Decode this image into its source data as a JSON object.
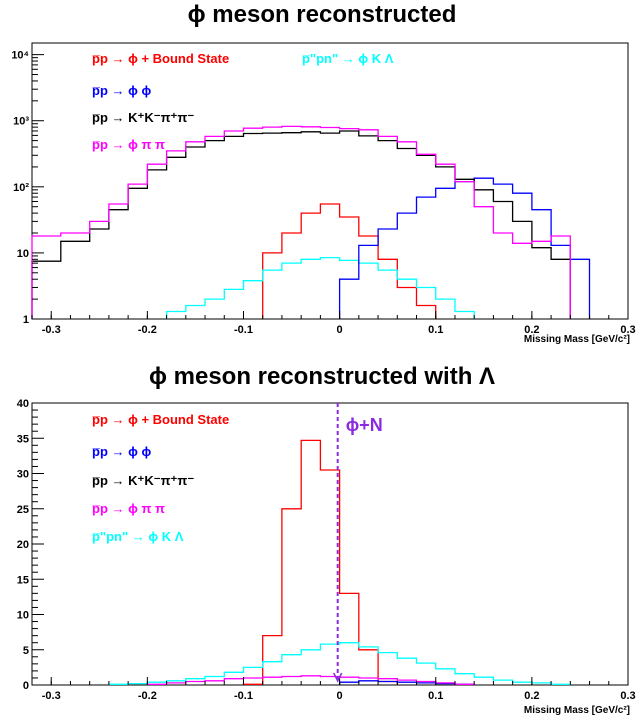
{
  "chart_data": [
    {
      "type": "histogram",
      "title": "ϕ meson reconstructed",
      "xlabel": "Missing Mass [GeV/c²]",
      "ylabel": "",
      "log_y": true,
      "xlim": [
        -0.32,
        0.3
      ],
      "ylim": [
        1,
        15000
      ],
      "x_ticks": [
        "-0.3",
        "-0.2",
        "-0.1",
        "0",
        "0.1",
        "0.2",
        "0.3"
      ],
      "y_ticks": [
        "1",
        "10",
        "10²",
        "10³",
        "10⁴"
      ],
      "bin_edges": [
        -0.32,
        -0.29,
        -0.26,
        -0.24,
        -0.22,
        -0.2,
        -0.18,
        -0.16,
        -0.14,
        -0.12,
        -0.1,
        -0.08,
        -0.06,
        -0.04,
        -0.02,
        0.0,
        0.02,
        0.04,
        0.06,
        0.08,
        0.1,
        0.12,
        0.14,
        0.16,
        0.18,
        0.2,
        0.22,
        0.24,
        0.26,
        0.28
      ],
      "series": [
        {
          "label": "p̅p → ϕ + Bound State",
          "color": "#ff0000",
          "values": [
            0,
            0,
            0,
            0,
            0,
            0,
            0,
            0,
            0,
            0,
            0,
            10,
            20,
            40,
            55,
            35,
            18,
            8,
            3,
            1.6,
            0,
            0,
            0,
            0,
            0,
            0,
            0,
            0,
            0
          ]
        },
        {
          "label": "p̅\"pn\" → ϕ K Λ",
          "color": "#00ffff",
          "values": [
            0,
            0,
            0,
            0,
            0,
            0,
            1.3,
            1.6,
            2,
            2.8,
            3.8,
            5.5,
            7,
            8,
            8.5,
            7.7,
            7,
            5.5,
            4,
            3,
            2,
            1.3,
            0,
            0,
            0,
            0,
            0,
            0,
            0
          ]
        },
        {
          "label": "p̅p → ϕ ϕ",
          "color": "#0000ff",
          "values": [
            0,
            0,
            0,
            0,
            0,
            0,
            0,
            0,
            0,
            0,
            0,
            0,
            0,
            0,
            0,
            4,
            13,
            23,
            40,
            70,
            95,
            120,
            135,
            110,
            80,
            45,
            13,
            8,
            0
          ]
        },
        {
          "label": "p̅p → K⁺K⁻π⁺π⁻",
          "color": "#000000",
          "values": [
            7.5,
            15,
            23,
            45,
            95,
            180,
            280,
            400,
            500,
            580,
            640,
            650,
            660,
            680,
            650,
            700,
            590,
            500,
            380,
            300,
            200,
            130,
            90,
            60,
            30,
            12,
            8,
            0,
            0
          ]
        },
        {
          "label": "p̅p → ϕ π π",
          "color": "#ff00ff",
          "values": [
            18,
            20,
            30,
            55,
            110,
            220,
            350,
            480,
            580,
            700,
            770,
            800,
            820,
            810,
            790,
            760,
            730,
            580,
            480,
            310,
            220,
            120,
            50,
            20,
            14,
            15,
            18,
            0,
            0
          ]
        }
      ]
    },
    {
      "type": "histogram",
      "title": "ϕ meson reconstructed with Λ",
      "xlabel": "Missing Mass [GeV/c²]",
      "ylabel": "",
      "log_y": false,
      "xlim": [
        -0.32,
        0.3
      ],
      "ylim": [
        0,
        40
      ],
      "x_ticks": [
        "-0.3",
        "-0.2",
        "-0.1",
        "0",
        "0.1",
        "0.2",
        "0.3"
      ],
      "y_ticks": [
        "0",
        "5",
        "10",
        "15",
        "20",
        "25",
        "30",
        "35",
        "40"
      ],
      "annotation": "ϕ+N",
      "annotation_x": -0.002,
      "bin_edges": [
        -0.32,
        -0.3,
        -0.28,
        -0.26,
        -0.24,
        -0.22,
        -0.2,
        -0.18,
        -0.16,
        -0.14,
        -0.12,
        -0.1,
        -0.08,
        -0.06,
        -0.04,
        -0.02,
        0.0,
        0.02,
        0.04,
        0.06,
        0.08,
        0.1,
        0.12,
        0.14,
        0.16,
        0.18,
        0.2,
        0.22,
        0.24,
        0.26,
        0.28,
        0.3
      ],
      "series": [
        {
          "label": "p̅p → ϕ + Bound State",
          "color": "#ff0000",
          "values": [
            0,
            0,
            0,
            0,
            0,
            0,
            0,
            0,
            0,
            0,
            0,
            0.1,
            7,
            25,
            34.7,
            30.5,
            13,
            5,
            0.5,
            0,
            0,
            0,
            0,
            0,
            0,
            0,
            0,
            0,
            0,
            0,
            0
          ]
        },
        {
          "label": "p̅p → ϕ ϕ",
          "color": "#0000ff",
          "values": [
            0,
            0,
            0,
            0,
            0,
            0,
            0,
            0,
            0,
            0,
            0,
            0,
            0,
            0,
            0,
            0,
            0.4,
            0.6,
            0.5,
            0.4,
            0.3,
            0.2,
            0.1,
            0,
            0,
            0,
            0,
            0,
            0,
            0,
            0
          ]
        },
        {
          "label": "p̅p → K⁺K⁻π⁺π⁻",
          "color": "#000000",
          "values": [
            0,
            0,
            0,
            0,
            0,
            0,
            0,
            0,
            0,
            0,
            0,
            0,
            0,
            0,
            0,
            0,
            0,
            0,
            0,
            0,
            0,
            0,
            0,
            0,
            0,
            0,
            0,
            0,
            0,
            0,
            0
          ]
        },
        {
          "label": "p̅p → ϕ π π",
          "color": "#ff00ff",
          "values": [
            0,
            0,
            0,
            0,
            0,
            0,
            0.1,
            0.3,
            0.5,
            0.6,
            0.9,
            1,
            1.1,
            1.2,
            1.3,
            1.2,
            1.1,
            1,
            0.9,
            0.7,
            0.5,
            0.3,
            0.1,
            0,
            0,
            0,
            0,
            0,
            0,
            0,
            0
          ]
        },
        {
          "label": "p̅\"pn\" → ϕ K Λ",
          "color": "#00ffff",
          "values": [
            0,
            0,
            0,
            0,
            0.1,
            0.2,
            0.4,
            0.6,
            0.9,
            1.2,
            1.8,
            2.5,
            3.3,
            4.3,
            5,
            5.8,
            6,
            5.4,
            4.6,
            3.8,
            3.1,
            2.3,
            1.6,
            1.1,
            0.7,
            0.4,
            0.3,
            0.1,
            0,
            0,
            0
          ]
        }
      ]
    }
  ]
}
